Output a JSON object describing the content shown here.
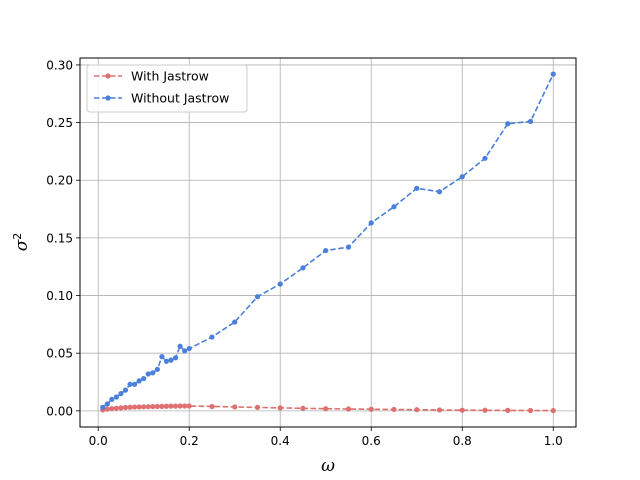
{
  "chart_data": {
    "type": "line",
    "xlabel": "ω",
    "ylabel_base": "σ",
    "ylabel_sup": "2",
    "xlim": [
      -0.04,
      1.05
    ],
    "ylim": [
      -0.014,
      0.306
    ],
    "x_ticks": [
      0.0,
      0.2,
      0.4,
      0.6,
      0.8,
      1.0
    ],
    "y_ticks": [
      0.0,
      0.05,
      0.1,
      0.15,
      0.2,
      0.25,
      0.3
    ],
    "x_tick_labels": [
      "0.0",
      "0.2",
      "0.4",
      "0.6",
      "0.8",
      "1.0"
    ],
    "y_tick_labels": [
      "0.00",
      "0.05",
      "0.10",
      "0.15",
      "0.20",
      "0.25",
      "0.30"
    ],
    "grid": true,
    "legend_position": "top-left",
    "series": [
      {
        "name": "With Jastrow",
        "color": "#e07070",
        "style": "dashed-with-dots",
        "x": [
          0.01,
          0.02,
          0.03,
          0.04,
          0.05,
          0.06,
          0.07,
          0.08,
          0.09,
          0.1,
          0.11,
          0.12,
          0.13,
          0.14,
          0.15,
          0.16,
          0.17,
          0.18,
          0.19,
          0.2,
          0.25,
          0.3,
          0.35,
          0.4,
          0.45,
          0.5,
          0.55,
          0.6,
          0.65,
          0.7,
          0.75,
          0.8,
          0.85,
          0.9,
          0.95,
          1.0
        ],
        "y": [
          0.0008,
          0.0015,
          0.002,
          0.0023,
          0.0026,
          0.0029,
          0.0031,
          0.0033,
          0.0034,
          0.0035,
          0.0036,
          0.0037,
          0.0038,
          0.0039,
          0.004,
          0.0041,
          0.0041,
          0.0042,
          0.0042,
          0.0042,
          0.0038,
          0.0034,
          0.003,
          0.0026,
          0.0022,
          0.0019,
          0.0016,
          0.0014,
          0.0012,
          0.001,
          0.0008,
          0.0006,
          0.0005,
          0.0004,
          0.0003,
          0.0002
        ]
      },
      {
        "name": "Without Jastrow",
        "color": "#4a7fdc",
        "style": "dashed-with-dots",
        "x": [
          0.01,
          0.02,
          0.03,
          0.04,
          0.05,
          0.06,
          0.07,
          0.08,
          0.09,
          0.1,
          0.11,
          0.12,
          0.13,
          0.14,
          0.15,
          0.16,
          0.17,
          0.18,
          0.19,
          0.2,
          0.25,
          0.3,
          0.35,
          0.4,
          0.45,
          0.5,
          0.55,
          0.6,
          0.65,
          0.7,
          0.75,
          0.8,
          0.85,
          0.9,
          0.95,
          1.0
        ],
        "y": [
          0.003,
          0.006,
          0.01,
          0.012,
          0.015,
          0.018,
          0.023,
          0.023,
          0.026,
          0.028,
          0.032,
          0.033,
          0.036,
          0.047,
          0.043,
          0.044,
          0.046,
          0.056,
          0.052,
          0.054,
          0.064,
          0.077,
          0.099,
          0.11,
          0.124,
          0.139,
          0.142,
          0.163,
          0.177,
          0.193,
          0.19,
          0.203,
          0.219,
          0.249,
          0.251,
          0.292
        ]
      }
    ]
  }
}
